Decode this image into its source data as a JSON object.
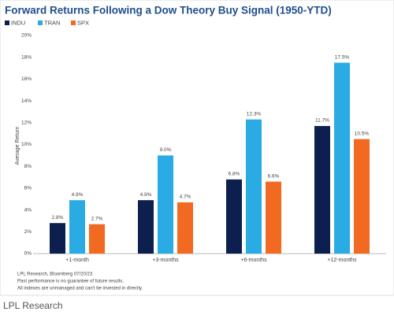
{
  "chart_data": {
    "type": "bar",
    "title": "Forward Returns Following a Dow Theory Buy Signal (1950-YTD)",
    "y_label": "Average Return",
    "categories": [
      "+1-month",
      "+3-months",
      "+6-months",
      "+12-months"
    ],
    "series": [
      {
        "name": "INDU",
        "color": "#0c1f4e",
        "values": [
          2.8,
          4.9,
          6.8,
          11.7
        ],
        "value_labels": [
          "2.8%",
          "4.9%",
          "6.8%",
          "11.7%"
        ]
      },
      {
        "name": "TRAN",
        "color": "#2aabe4",
        "values": [
          4.9,
          9.0,
          12.3,
          17.5
        ],
        "value_labels": [
          "4.9%",
          "9.0%",
          "12.3%",
          "17.5%"
        ]
      },
      {
        "name": "SPX",
        "color": "#f26a22",
        "values": [
          2.7,
          4.7,
          6.6,
          10.5
        ],
        "value_labels": [
          "2.7%",
          "4.7%",
          "6.6%",
          "10.5%"
        ]
      }
    ],
    "ylim": [
      0,
      20
    ],
    "yticks": [
      {
        "value": 0,
        "label": "0%"
      },
      {
        "value": 2,
        "label": "2%"
      },
      {
        "value": 4,
        "label": "4%"
      },
      {
        "value": 6,
        "label": "6%"
      },
      {
        "value": 8,
        "label": "8%"
      },
      {
        "value": 10,
        "label": "10%"
      },
      {
        "value": 12,
        "label": "12%"
      },
      {
        "value": 14,
        "label": "14%"
      },
      {
        "value": 16,
        "label": "16%"
      },
      {
        "value": 18,
        "label": "18%"
      },
      {
        "value": 20,
        "label": "20%"
      }
    ],
    "grid": false,
    "legend": "top-left",
    "notes": [
      "LPL Research, Bloomberg 07/20/23",
      "Past performance is no guarantee of future results.",
      "All indexes are unmanaged and can't be invested in directly."
    ]
  },
  "caption": "LPL Research"
}
